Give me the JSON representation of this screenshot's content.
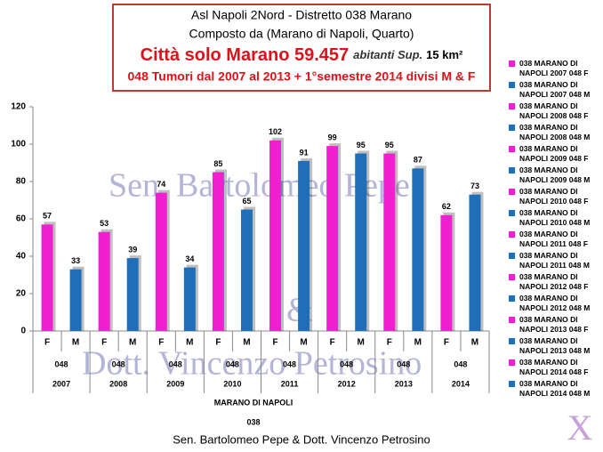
{
  "chart_data": {
    "type": "bar",
    "title_lines": [
      "Asl Napoli 2Nord - Distretto 038  Marano",
      "Composto da (Marano di Napoli, Quarto)"
    ],
    "title_city": "Città solo Marano 59.457",
    "title_city_note": "abitanti Sup.",
    "title_city_area": "15 km²",
    "subtitle": "048 Tumori dal 2007 al 2013 + 1°semestre 2014 divisi M & F",
    "categories": [
      "F",
      "M",
      "F",
      "M",
      "F",
      "M",
      "F",
      "M",
      "F",
      "M",
      "F",
      "M",
      "F",
      "M",
      "F",
      "M"
    ],
    "group_labels": [
      "048",
      "048",
      "048",
      "048",
      "048",
      "048",
      "048",
      "048"
    ],
    "years": [
      "2007",
      "2008",
      "2009",
      "2010",
      "2011",
      "2012",
      "2013",
      "2014"
    ],
    "axis_title_1": "MARANO DI NAPOLI",
    "axis_title_2": "038",
    "values": [
      57,
      33,
      53,
      39,
      74,
      34,
      85,
      65,
      102,
      91,
      99,
      95,
      95,
      87,
      62,
      73
    ],
    "colors": [
      "#f020d0",
      "#1f6fb8",
      "#f020d0",
      "#1f6fb8",
      "#f020d0",
      "#1f6fb8",
      "#f020d0",
      "#1f6fb8",
      "#f020d0",
      "#1f6fb8",
      "#f020d0",
      "#1f6fb8",
      "#f020d0",
      "#1f6fb8",
      "#f020d0",
      "#1f6fb8"
    ],
    "legend_labels": [
      "038 MARANO DI NAPOLI 2007 048 F",
      "038 MARANO DI NAPOLI 2007 048 M",
      "038 MARANO DI NAPOLI 2008 048 F",
      "038 MARANO DI NAPOLI 2008 048 M",
      "038 MARANO DI NAPOLI 2009 048 F",
      "038 MARANO DI NAPOLI 2009 048 M",
      "038 MARANO DI NAPOLI 2010 048 F",
      "038 MARANO DI NAPOLI 2010 048 M",
      "038 MARANO DI NAPOLI 2011 048 F",
      "038 MARANO DI NAPOLI 2011 048 M",
      "038 MARANO DI NAPOLI 2012 048 F",
      "038 MARANO DI NAPOLI 2012 048 M",
      "038 MARANO DI NAPOLI 2013 048 F",
      "038 MARANO DI NAPOLI 2013 048 M",
      "038 MARANO DI NAPOLI 2014 048 F",
      "038 MARANO DI NAPOLI 2014 048 M"
    ],
    "ylim": [
      0,
      120
    ],
    "yticks": [
      0,
      20,
      40,
      60,
      80,
      100,
      120
    ],
    "grid": false,
    "watermark": [
      "Sen. Bartolomeo Pepe",
      "&",
      "Dott. Vincenzo Petrosino"
    ],
    "footer": "Sen. Bartolomeo Pepe & Dott. Vincenzo Petrosino",
    "logo": "X"
  }
}
